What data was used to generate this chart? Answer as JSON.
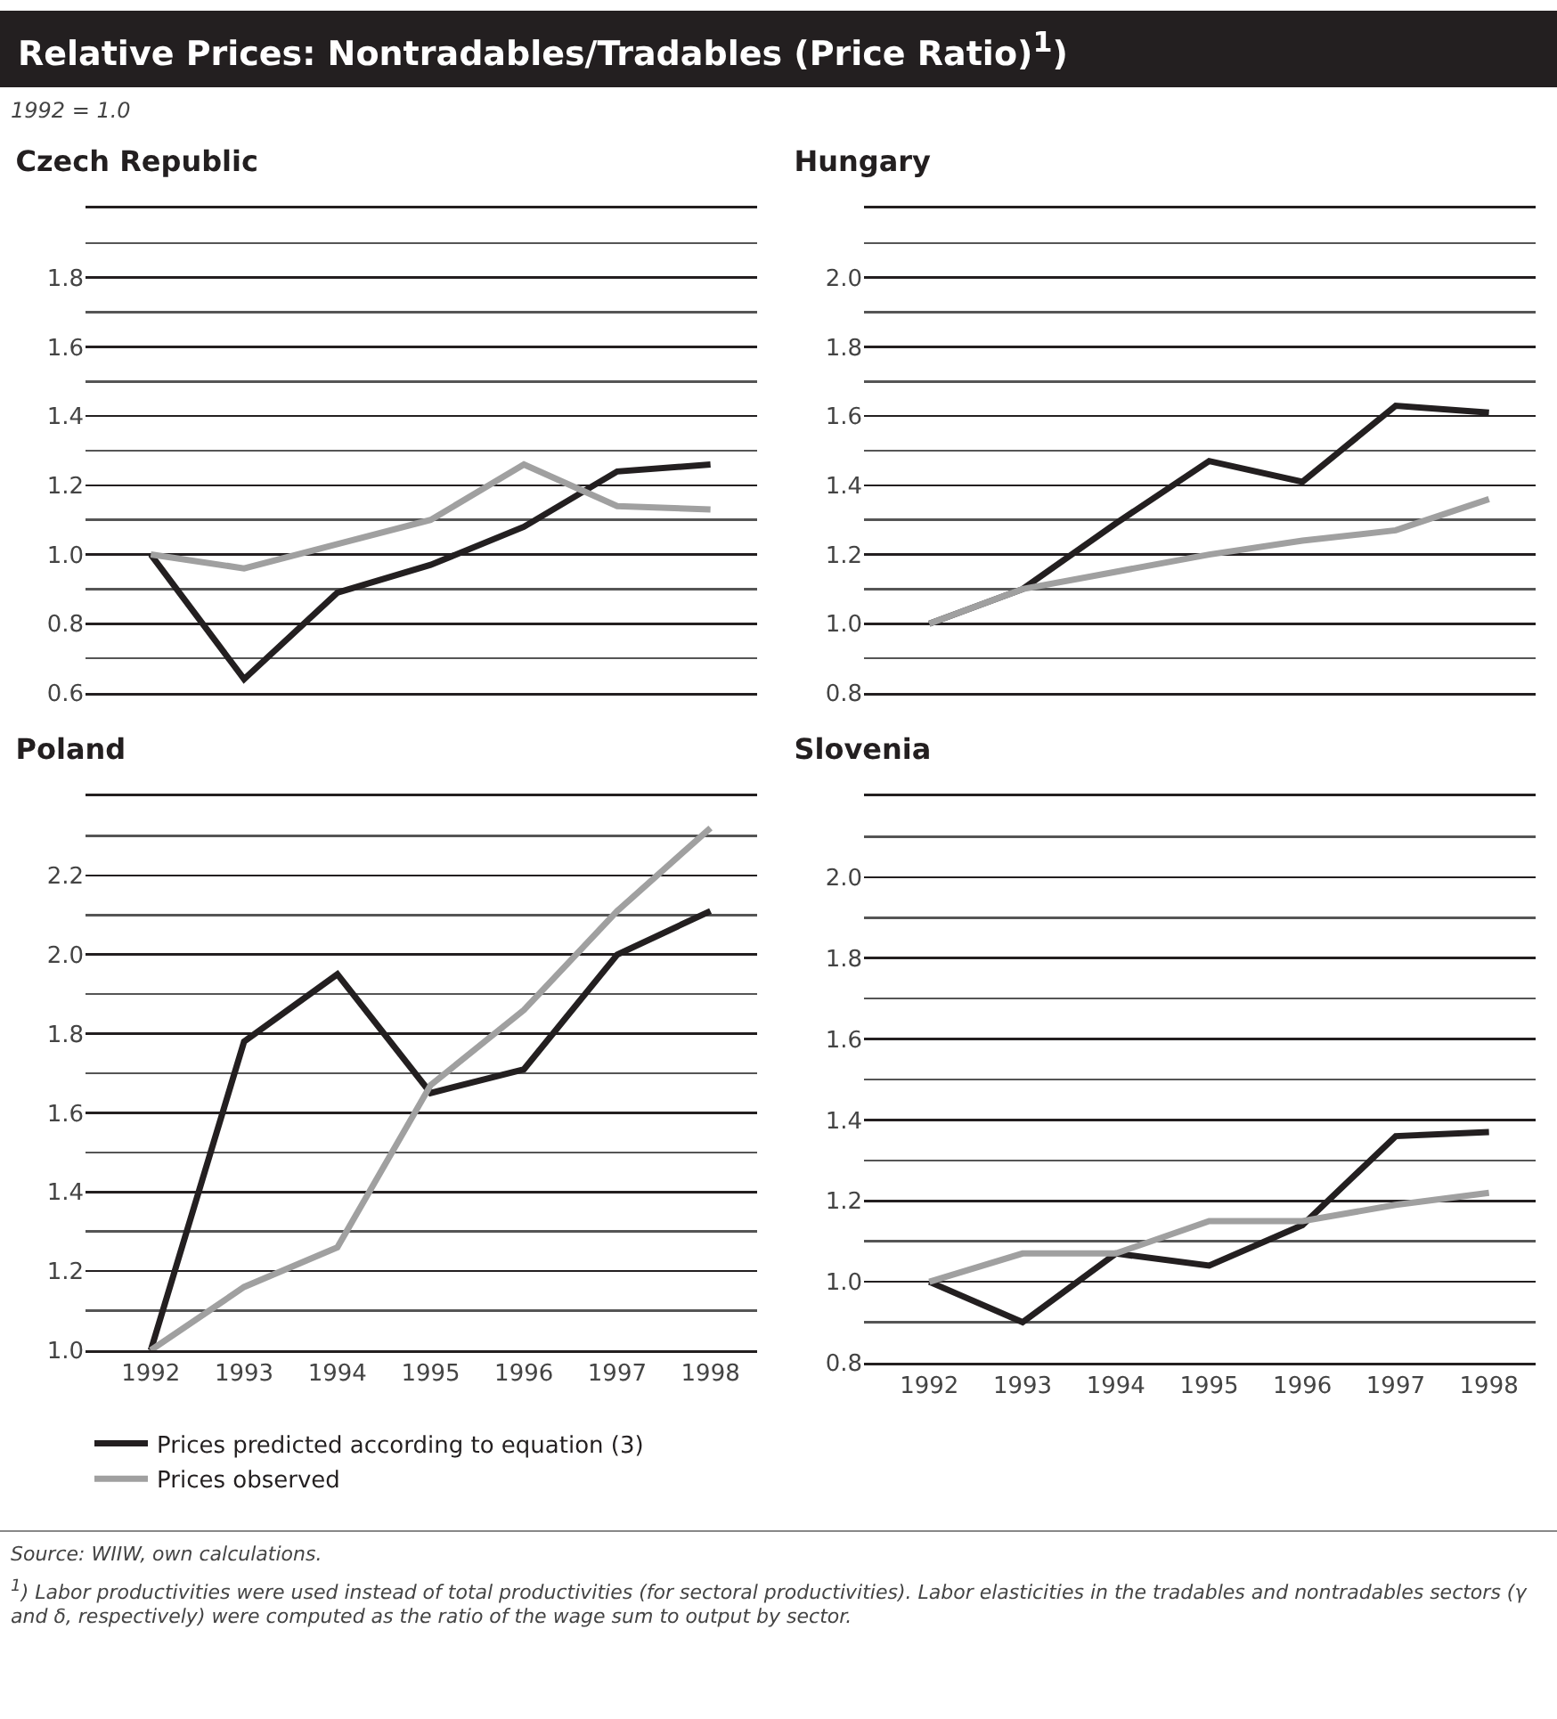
{
  "chart_data": [
    {
      "type": "line",
      "title": "Czech Republic",
      "annotations": [
        "Relative Prices: Nontradables/Tradables (Price Ratio)$^{1}$)",
        "1992 = 1.0"
      ],
      "x": [
        1992,
        1993,
        1994,
        1995,
        1996,
        1997,
        1998
      ],
      "xlim": [
        1991.3,
        1998.5
      ],
      "xticks": [
        1992,
        1993,
        1994,
        1995,
        1996,
        1997,
        1998
      ],
      "ylim": [
        0.6,
        2.0
      ],
      "yticks": [
        {
          "value": 0.6,
          "label": "0.6"
        },
        {
          "value": 0.8,
          "label": "0.8"
        },
        {
          "value": 1.0,
          "label": "1.0"
        },
        {
          "value": 1.2,
          "label": "1.2"
        },
        {
          "value": 1.4,
          "label": "1.4"
        },
        {
          "value": 1.6,
          "label": "1.6"
        },
        {
          "value": 1.8,
          "label": "1.8"
        }
      ],
      "tick_labels": "y",
      "grid": "y",
      "legend": false,
      "line_style": "solid",
      "series": [
        {
          "color": "#231f20",
          "values": [
            1.0,
            0.64,
            0.89,
            0.97,
            1.08,
            1.24,
            1.26
          ]
        },
        {
          "color": "#a0a0a0",
          "values": [
            1.0,
            0.96,
            1.03,
            1.1,
            1.26,
            1.14,
            1.13
          ]
        }
      ]
    },
    {
      "type": "line",
      "title": "Hungary",
      "x": [
        1992,
        1993,
        1994,
        1995,
        1996,
        1997,
        1998
      ],
      "xlim": [
        1991.3,
        1998.5
      ],
      "xticks": [
        1992,
        1993,
        1994,
        1995,
        1996,
        1997,
        1998
      ],
      "ylim": [
        0.8,
        2.2
      ],
      "yticks": [
        {
          "value": 0.8,
          "label": "0.8"
        },
        {
          "value": 1.0,
          "label": "1.0"
        },
        {
          "value": 1.2,
          "label": "1.2"
        },
        {
          "value": 1.4,
          "label": "1.4"
        },
        {
          "value": 1.6,
          "label": "1.6"
        },
        {
          "value": 1.8,
          "label": "1.8"
        },
        {
          "value": 2.0,
          "label": "2.0"
        }
      ],
      "tick_labels": "y",
      "grid": "y",
      "legend": false,
      "line_style": "solid",
      "series": [
        {
          "color": "#231f20",
          "values": [
            1.0,
            1.1,
            1.29,
            1.47,
            1.41,
            1.63,
            1.61
          ]
        },
        {
          "color": "#a0a0a0",
          "values": [
            1.0,
            1.1,
            1.15,
            1.2,
            1.24,
            1.27,
            1.36
          ]
        }
      ]
    },
    {
      "type": "line",
      "title": "Poland",
      "x": [
        1992,
        1993,
        1994,
        1995,
        1996,
        1997,
        1998
      ],
      "xlim": [
        1991.3,
        1998.5
      ],
      "xticks": [
        1992,
        1993,
        1994,
        1995,
        1996,
        1997,
        1998
      ],
      "ylim": [
        1.0,
        2.4
      ],
      "yticks": [
        {
          "value": 1.0,
          "label": "1.0"
        },
        {
          "value": 1.2,
          "label": "1.2"
        },
        {
          "value": 1.4,
          "label": "1.4"
        },
        {
          "value": 1.6,
          "label": "1.6"
        },
        {
          "value": 1.8,
          "label": "1.8"
        },
        {
          "value": 2.0,
          "label": "2.0"
        },
        {
          "value": 2.2,
          "label": "2.2"
        }
      ],
      "grid": "y",
      "legend": "bottom left",
      "line_style": "solid",
      "series": [
        {
          "name": "Prices predicted according to equation (3)",
          "color": "#231f20",
          "values": [
            1.0,
            1.78,
            1.95,
            1.65,
            1.71,
            2.0,
            2.11
          ]
        },
        {
          "name": "Prices observed",
          "color": "#a0a0a0",
          "values": [
            1.0,
            1.16,
            1.26,
            1.67,
            1.86,
            2.11,
            2.32
          ]
        }
      ]
    },
    {
      "type": "line",
      "title": "Slovenia",
      "annotations": [
        "Source: WIIW, own calculations.",
        "$^{1}$) Labor productivities were used instead of total productivities (for sectoral productivities). Labor elasticities in the tradables and nontradables sectors (γ and δ, respectively) were computed as the ratio of the wage sum to output by sector."
      ],
      "x": [
        1992,
        1993,
        1994,
        1995,
        1996,
        1997,
        1998
      ],
      "xlim": [
        1991.3,
        1998.5
      ],
      "xticks": [
        1992,
        1993,
        1994,
        1995,
        1996,
        1997,
        1998
      ],
      "ylim": [
        0.8,
        2.2
      ],
      "yticks": [
        {
          "value": 0.8,
          "label": "0.8"
        },
        {
          "value": 1.0,
          "label": "1.0"
        },
        {
          "value": 1.2,
          "label": "1.2"
        },
        {
          "value": 1.4,
          "label": "1.4"
        },
        {
          "value": 1.6,
          "label": "1.6"
        },
        {
          "value": 1.8,
          "label": "1.8"
        },
        {
          "value": 2.0,
          "label": "2.0"
        }
      ],
      "grid": "y",
      "legend": false,
      "line_style": "solid",
      "series": [
        {
          "color": "#231f20",
          "values": [
            1.0,
            0.9,
            1.07,
            1.04,
            1.14,
            1.36,
            1.37
          ]
        },
        {
          "color": "#a0a0a0",
          "values": [
            1.0,
            1.07,
            1.07,
            1.15,
            1.15,
            1.19,
            1.22
          ]
        }
      ]
    }
  ]
}
